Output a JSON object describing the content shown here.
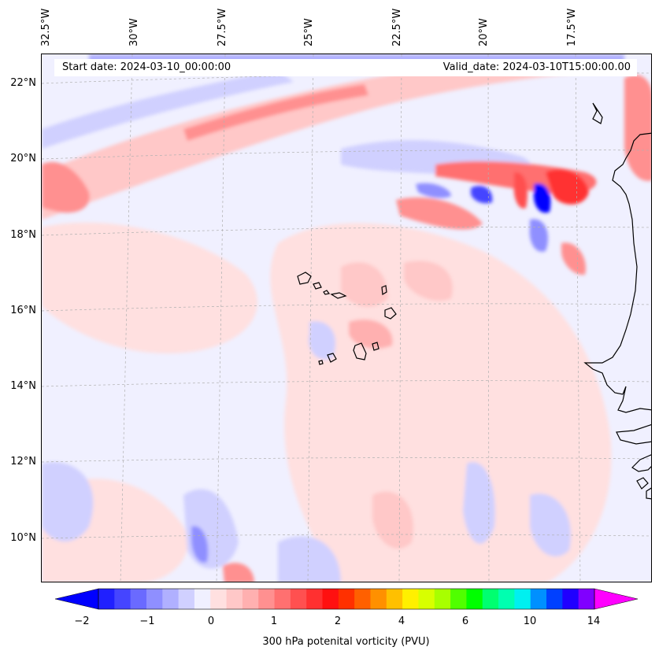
{
  "map": {
    "start_date_text": "Start date: 2024-03-10_00:00:00",
    "valid_date_text": "Valid_date: 2024-03-10T15:00:00.00",
    "longitude_labels": [
      "32.5°W",
      "30°W",
      "27.5°W",
      "25°W",
      "22.5°W",
      "20°W",
      "17.5°W"
    ],
    "latitude_labels": [
      "22°N",
      "20°N",
      "18°N",
      "16°N",
      "14°N",
      "12°N",
      "10°N"
    ],
    "colors": {
      "background_field": "#f0f0ff",
      "coastline": "#000000",
      "gridline": "#b0b0b0"
    }
  },
  "colorbar": {
    "label": "300 hPa potenital vorticity (PVU)",
    "tick_labels": [
      "−2",
      "−1",
      "0",
      "1",
      "2",
      "4",
      "6",
      "10",
      "14"
    ],
    "colors": [
      "#0000ff",
      "#2020ff",
      "#4545ff",
      "#6a6aff",
      "#8f8fff",
      "#b0b0ff",
      "#d0d0ff",
      "#f0f0ff",
      "#ffe0e0",
      "#ffc8c8",
      "#ffb0b0",
      "#ff9090",
      "#ff7070",
      "#ff5050",
      "#ff3030",
      "#ff1010",
      "#ff3000",
      "#ff6000",
      "#ff9000",
      "#ffc000",
      "#fff000",
      "#d8ff00",
      "#a8ff00",
      "#50ff00",
      "#00ff00",
      "#00ff70",
      "#00ffb0",
      "#00f0f0",
      "#0090ff",
      "#0040ff",
      "#2000ff",
      "#8000ff",
      "#ff00ff"
    ]
  }
}
